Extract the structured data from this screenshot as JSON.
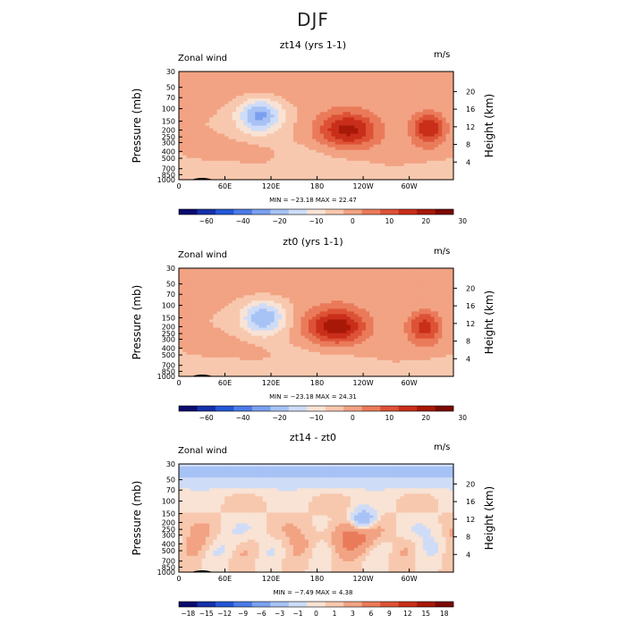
{
  "figure": {
    "title": "DJF"
  },
  "panels": [
    {
      "title": "zt14 (yrs 1-1)",
      "variable": "Zonal wind",
      "units": "m/s",
      "min_max": "MIN = −23.18   MAX =  22.47"
    },
    {
      "title": "zt0 (yrs 1-1)",
      "variable": "Zonal wind",
      "units": "m/s",
      "min_max": "MIN = −23.18   MAX =  24.31"
    },
    {
      "title": "zt14 - zt0",
      "variable": "Zonal wind",
      "units": "m/s",
      "min_max": "MIN =  −7.49   MAX =    4.38"
    }
  ],
  "chart_data": [
    {
      "type": "heatmap",
      "title": "zt14 (yrs 1-1)",
      "subtitle": "Zonal wind",
      "units": "m/s",
      "xlabel": "",
      "ylabel": "Pressure (mb)",
      "y2label": "Height (km)",
      "x_ticks": [
        "0",
        "60E",
        "120E",
        "180",
        "120W",
        "60W"
      ],
      "x_tick_lon": [
        0,
        60,
        120,
        180,
        240,
        300
      ],
      "xlim": [
        0,
        357.5
      ],
      "y_ticks": [
        "30",
        "50",
        "70",
        "100",
        "150",
        "200",
        "250",
        "300",
        "400",
        "500",
        "700",
        "850",
        "1000"
      ],
      "y_tick_pressure": [
        30,
        50,
        70,
        100,
        150,
        200,
        250,
        300,
        400,
        500,
        700,
        850,
        1000
      ],
      "ylim": [
        1000,
        30
      ],
      "y2_ticks": [
        "4",
        "8",
        "12",
        "16",
        "20"
      ],
      "y2_tick_km": [
        4,
        8,
        12,
        16,
        20
      ],
      "colorbar_labels": [
        "−60",
        "−40",
        "−20",
        "−10",
        "0",
        "10",
        "20",
        "30"
      ],
      "colorbar_colors": [
        "#0a0a6e",
        "#1530a8",
        "#2457d6",
        "#4c7be8",
        "#7ba0f0",
        "#a7c2f5",
        "#cfdcf7",
        "#f8e3d5",
        "#f8c8ae",
        "#f2a383",
        "#ea7b5a",
        "#dd5236",
        "#c92e1a",
        "#a81807",
        "#7a0a02"
      ],
      "min": -23.18,
      "max": 22.47,
      "features": [
        {
          "kind": "min",
          "lon": 105,
          "p": 125,
          "value": -22
        },
        {
          "kind": "max",
          "lon": 220,
          "p": 200,
          "value": 22
        },
        {
          "kind": "max",
          "lon": 325,
          "p": 190,
          "value": 20
        }
      ]
    },
    {
      "type": "heatmap",
      "title": "zt0 (yrs 1-1)",
      "subtitle": "Zonal wind",
      "units": "m/s",
      "xlabel": "",
      "ylabel": "Pressure (mb)",
      "y2label": "Height (km)",
      "x_ticks": [
        "0",
        "60E",
        "120E",
        "180",
        "120W",
        "60W"
      ],
      "x_tick_lon": [
        0,
        60,
        120,
        180,
        240,
        300
      ],
      "xlim": [
        0,
        357.5
      ],
      "y_ticks": [
        "30",
        "50",
        "70",
        "100",
        "150",
        "200",
        "250",
        "300",
        "400",
        "500",
        "700",
        "850",
        "1000"
      ],
      "y_tick_pressure": [
        30,
        50,
        70,
        100,
        150,
        200,
        250,
        300,
        400,
        500,
        700,
        850,
        1000
      ],
      "ylim": [
        1000,
        30
      ],
      "y2_ticks": [
        "4",
        "8",
        "12",
        "16",
        "20"
      ],
      "y2_tick_km": [
        4,
        8,
        12,
        16,
        20
      ],
      "colorbar_labels": [
        "−60",
        "−40",
        "−20",
        "−10",
        "0",
        "10",
        "20",
        "30"
      ],
      "colorbar_colors": [
        "#0a0a6e",
        "#1530a8",
        "#2457d6",
        "#4c7be8",
        "#7ba0f0",
        "#a7c2f5",
        "#cfdcf7",
        "#f8e3d5",
        "#f8c8ae",
        "#f2a383",
        "#ea7b5a",
        "#dd5236",
        "#c92e1a",
        "#a81807",
        "#7a0a02"
      ],
      "min": -23.18,
      "max": 24.31,
      "features": [
        {
          "kind": "min",
          "lon": 110,
          "p": 150,
          "value": -20
        },
        {
          "kind": "max",
          "lon": 205,
          "p": 200,
          "value": 24
        },
        {
          "kind": "max",
          "lon": 320,
          "p": 200,
          "value": 18
        }
      ]
    },
    {
      "type": "heatmap",
      "title": "zt14 - zt0",
      "subtitle": "Zonal wind",
      "units": "m/s",
      "xlabel": "",
      "ylabel": "Pressure (mb)",
      "y2label": "Height (km)",
      "x_ticks": [
        "0",
        "60E",
        "120E",
        "180",
        "120W",
        "60W"
      ],
      "x_tick_lon": [
        0,
        60,
        120,
        180,
        240,
        300
      ],
      "xlim": [
        0,
        357.5
      ],
      "y_ticks": [
        "30",
        "50",
        "70",
        "100",
        "150",
        "200",
        "250",
        "300",
        "400",
        "500",
        "700",
        "850",
        "1000"
      ],
      "y_tick_pressure": [
        30,
        50,
        70,
        100,
        150,
        200,
        250,
        300,
        400,
        500,
        700,
        850,
        1000
      ],
      "ylim": [
        1000,
        30
      ],
      "y2_ticks": [
        "4",
        "8",
        "12",
        "16",
        "20"
      ],
      "y2_tick_km": [
        4,
        8,
        12,
        16,
        20
      ],
      "colorbar_labels": [
        "−18",
        "−15",
        "−12",
        "−9",
        "−6",
        "−3",
        "−1",
        "0",
        "1",
        "3",
        "6",
        "9",
        "12",
        "15",
        "18"
      ],
      "colorbar_colors": [
        "#0a0a6e",
        "#1530a8",
        "#2457d6",
        "#4c7be8",
        "#7ba0f0",
        "#a7c2f5",
        "#cfdcf7",
        "#f8e3d5",
        "#f8c8ae",
        "#f2a383",
        "#ea7b5a",
        "#dd5236",
        "#c92e1a",
        "#a81807",
        "#7a0a02"
      ],
      "min": -7.49,
      "max": 4.38,
      "features": [
        {
          "kind": "min",
          "lon": 240,
          "p": 180,
          "value": -7
        },
        {
          "kind": "max",
          "lon": 218,
          "p": 320,
          "value": 4
        }
      ]
    }
  ]
}
